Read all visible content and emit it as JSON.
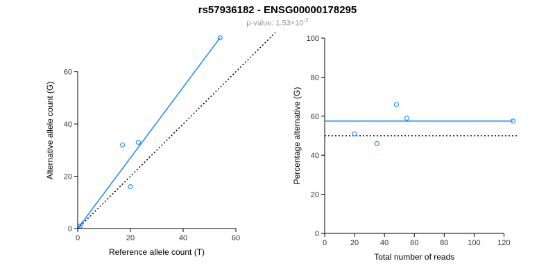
{
  "header": {
    "title": "rs57936182 - ENSG00000178295",
    "subtitle_text": "p-value: 1.53×10",
    "subtitle_exponent": "-2"
  },
  "colors": {
    "accent": "#1E90FF",
    "identity_line": "#000000",
    "subtitle_gray": "#9a9a9a",
    "tick_label": "#333333"
  },
  "chart_data": [
    {
      "type": "scatter",
      "title": "",
      "xlabel": "Reference allele count (T)",
      "ylabel": "Alternative allele count (G)",
      "xlim": [
        0,
        75
      ],
      "ylim": [
        0,
        75
      ],
      "x_ticks": [
        0,
        20,
        40,
        60
      ],
      "y_ticks": [
        0,
        20,
        40,
        60
      ],
      "grid": false,
      "legend": "none",
      "points": [
        [
          1,
          1
        ],
        [
          17,
          32
        ],
        [
          20,
          16
        ],
        [
          23,
          33
        ],
        [
          54,
          73
        ]
      ],
      "lines": [
        {
          "name": "fit",
          "style": "solid",
          "color": "#1E90FF",
          "from": [
            0,
            0
          ],
          "to": [
            54,
            73
          ]
        },
        {
          "name": "identity",
          "style": "dotted",
          "color": "#000000",
          "from": [
            0,
            0
          ],
          "to": [
            75,
            75
          ]
        }
      ]
    },
    {
      "type": "scatter",
      "title": "",
      "xlabel": "Total number of reads",
      "ylabel": "Percentage alternative (G)",
      "xlim": [
        0,
        130
      ],
      "ylim": [
        0,
        100
      ],
      "x_ticks": [
        0,
        20,
        40,
        60,
        80,
        100,
        120
      ],
      "y_ticks": [
        0,
        20,
        40,
        60,
        80,
        100
      ],
      "grid": false,
      "legend": "none",
      "points": [
        [
          20,
          51
        ],
        [
          35,
          46
        ],
        [
          48,
          66
        ],
        [
          55,
          59
        ],
        [
          126,
          57.5
        ]
      ],
      "lines": [
        {
          "name": "mean-percentage",
          "style": "solid",
          "color": "#1E90FF",
          "from": [
            0,
            57.5
          ],
          "to": [
            126,
            57.5
          ]
        },
        {
          "name": "fifty-percent",
          "style": "dotted",
          "color": "#000000",
          "from": [
            0,
            50
          ],
          "to": [
            130,
            50
          ]
        }
      ]
    }
  ]
}
